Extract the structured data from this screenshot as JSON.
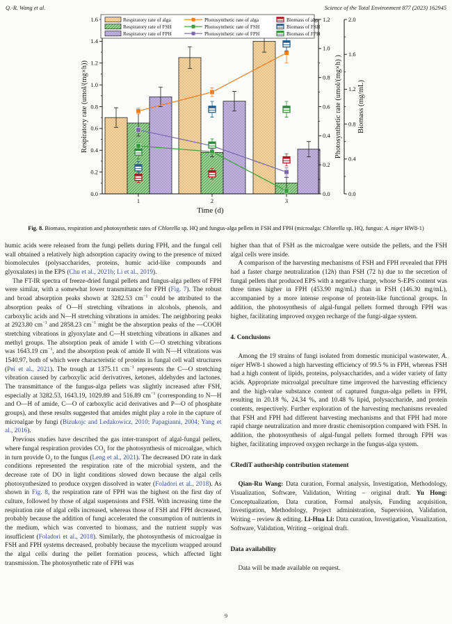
{
  "header": {
    "author": "Q.-R. Wang et al.",
    "journal": "Science of the Total Environment 877 (2023) 162945"
  },
  "figure": {
    "caption_runs": [
      {
        "t": "Fig. 8.",
        "s": "b"
      },
      {
        "t": " Biomass, respiration and photosynthetic rates of "
      },
      {
        "t": "Chlorella",
        "s": "i"
      },
      {
        "t": " sp. HQ and fungus-alga pellets in FSH and FPH (microalga: "
      },
      {
        "t": "Chlorella",
        "s": "i"
      },
      {
        "t": " sp. HQ, fungus: "
      },
      {
        "t": "A. niger",
        "s": "i"
      },
      {
        "t": " HW8-1)"
      }
    ]
  },
  "chart_data": {
    "type": "bar+line+box",
    "x": [
      1,
      2,
      3
    ],
    "xlabel": "Time (d)",
    "axes": {
      "left": {
        "label": "Respiratory rate (umol/(mg×h))",
        "min": 0,
        "max": 1.6,
        "step": 0.2
      },
      "right1": {
        "label": "Photosynthetic rate (umol/(mg×h) )",
        "min": 0,
        "max": 1.2,
        "step": 0.2
      },
      "right2": {
        "label": "Biomass (mg/mL)",
        "min": 0,
        "max": 2.0,
        "step": 0.4
      }
    },
    "bars": [
      {
        "name": "Respiratory rate of alga",
        "values": [
          0.7,
          1.25,
          1.4
        ],
        "err": [
          0.09,
          0.1,
          0.1
        ],
        "fill": "#f0d3a2",
        "pattern": "dots",
        "patternColor": "#d6973f"
      },
      {
        "name": "Respiratory rate of FSH",
        "values": [
          0.65,
          0.38,
          0.1
        ],
        "err": [
          0.12,
          0.04,
          0.05
        ],
        "fill": "#a6d9a0",
        "pattern": "hatch",
        "patternColor": "#3e8f3e"
      },
      {
        "name": "Respiratory rate of FPH",
        "values": [
          0.89,
          0.85,
          0.41
        ],
        "err": [
          0.09,
          0.09,
          0.07
        ],
        "fill": "#c0b2dc",
        "pattern": "dots",
        "patternColor": "#8677b5"
      }
    ],
    "lines": [
      {
        "name": "Photosynthetic rate of alga",
        "values": [
          0.57,
          0.7,
          0.97
        ],
        "err": [
          0.02,
          0.03,
          0.07
        ],
        "color": "#ed7d1f"
      },
      {
        "name": "Photosynthetic rate of FSH",
        "values": [
          0.33,
          0.29,
          0.02
        ],
        "err": [
          0.02,
          0.02,
          0.02
        ],
        "color": "#3ba03b"
      },
      {
        "name": "Photosynthetic rate of FPH",
        "values": [
          0.44,
          0.33,
          0.15
        ],
        "err": [
          0.02,
          0.02,
          0.03
        ],
        "color": "#7a67af"
      }
    ],
    "boxes": [
      {
        "name": "Biomass of alga",
        "values": [
          0.19,
          0.23,
          0.39
        ],
        "err": [
          0.06,
          0.06,
          0.07
        ],
        "color": "#b51423"
      },
      {
        "name": "Biomass of FSH",
        "values": [
          0.3,
          0.97,
          1.72
        ],
        "err": [
          0.07,
          0.09,
          0.08
        ],
        "color": "#2a5d8c"
      },
      {
        "name": "Biomass of FPH",
        "values": [
          0.48,
          0.56,
          0.97
        ],
        "err": [
          0.08,
          0.07,
          0.09
        ],
        "color": "#2f8b3c"
      }
    ]
  },
  "columns": {
    "left": [
      {
        "type": "p",
        "indent": false,
        "runs": [
          {
            "t": "humic acids were released from the fungi pellets during FPH, and the fungal cell wall obtained a relatively high adsorption capacity owing to the presence of mixed biomolecules (polysaccharides, proteins, humic acid-like compounds and glyoxalates) in the EPS ("
          },
          {
            "t": "Chu et al., 2021b; Li et al., 2019",
            "s": "link"
          },
          {
            "t": ")."
          }
        ]
      },
      {
        "type": "p",
        "indent": true,
        "runs": [
          {
            "t": "The FT-IR spectra of freeze-dried fungal pellets and fungus-alga pellets of FPH were similar, with a somewhat lower transmittance for FPH ("
          },
          {
            "t": "Fig. 7",
            "s": "link"
          },
          {
            "t": "). The robust and broad absorption peaks shown at 3282.53 cm"
          },
          {
            "t": "−1",
            "s": "sup"
          },
          {
            "t": " could be attributed to the absorption peaks of O—H stretching vibrations in alcohols, phenols, and carboxylic acids and N—H stretching vibrations in amides. The neighboring peaks at 2923.80 cm"
          },
          {
            "t": "−1",
            "s": "sup"
          },
          {
            "t": " and 2858.23 cm"
          },
          {
            "t": "−1",
            "s": "sup"
          },
          {
            "t": " might be the absorption peaks of the —COOH stretching vibrations in glyoxylate and C—H stretching vibrations in alkanes and methyl groups. The absorption peak of amide I with C—O stretching vibrations was 1643.19 cm"
          },
          {
            "t": "−1",
            "s": "sup"
          },
          {
            "t": ", and the absorption peak of amide II with N—H vibrations was 1540.97, both of which were characteristic of proteins in fungal cell wall structures ("
          },
          {
            "t": "Pei et al., 2021",
            "s": "link"
          },
          {
            "t": "). The trough at 1375.11 cm"
          },
          {
            "t": "−1",
            "s": "sup"
          },
          {
            "t": " represents the C—O stretching vibration caused by carboxylic acid derivatives, ketones, aldehydes and lactones. The transmittance of the fungus-alga pellets was slightly increased after FSH, especially at 3282.53, 1643.19, 1029.89 and 516.89 cm"
          },
          {
            "t": "−1",
            "s": "sup"
          },
          {
            "t": " (corresponding to N—H and O—H of amide, C—O of carboxylic acid derivatives and P—O of phosphate groups), and these results suggested that amides might play a role in the capture of microalgae by fungi ("
          },
          {
            "t": "Bizukojc and Ledakowicz, 2010; Papagianni, 2004; Yang et al., 2016",
            "s": "link"
          },
          {
            "t": ")."
          }
        ]
      },
      {
        "type": "p",
        "indent": true,
        "runs": [
          {
            "t": "Previous studies have described the gas inter-transport of algal-fungal pellets, where fungal respiration provides CO"
          },
          {
            "t": "2",
            "s": "sub"
          },
          {
            "t": " for the photosynthesis of microalgae, which in turn provide O"
          },
          {
            "t": "2",
            "s": "sub"
          },
          {
            "t": " to the fungus ("
          },
          {
            "t": "Leng et al., 2021",
            "s": "link"
          },
          {
            "t": "). The decreased DO rate in dark conditions represented the respiration rate of the microbial system, and the decrease rate of DO in light conditions slowed down because the algal cells photosynthesized to produce oxygen dissolved in water ("
          },
          {
            "t": "Foladori et al., 2018",
            "s": "link"
          },
          {
            "t": "). As shown in "
          },
          {
            "t": "Fig. 8",
            "s": "link"
          },
          {
            "t": ", the respiration rate of FPH was the highest on the first day of culture, followed by those of algal suspensions and FSH. With increasing time the respiration rate of algal cells increased, whereas those of FSH and FPH decreased, probably because the addition of fungi accelerated the consumption of nutrients in the medium, which was converted to biomass, and the nutrient supply was insufficient ("
          },
          {
            "t": "Foladori et al., 2018",
            "s": "link"
          },
          {
            "t": "). Similarly, the photosynthesis of microalgae in FSH and FPH systems decreased, probably because the mycelium wrapped around the algal cells during the pellet formation process, which affected light transmission. The photosynthetic rate of FPH was"
          }
        ]
      }
    ],
    "right": [
      {
        "type": "p",
        "indent": false,
        "runs": [
          {
            "t": "higher than that of FSH as the microalgae were outside the pellets, and the FSH algal cells were inside."
          }
        ]
      },
      {
        "type": "p",
        "indent": true,
        "runs": [
          {
            "t": "A comparison of the harvesting mechanisms of FSH and FPH revealed that FPH had a faster charge neutralization (12"
          },
          {
            "t": "h",
            "s": "i"
          },
          {
            "t": ") than FSH (72 h) due to the secretion of fungal pellets that produced EPS with a negative charge, whose S-EPS content was three times higher in FPH (453.90 mg/mL) than in FSH (146.30 mg/mL), accompanied by a more intense response of protein-like functional groups. In addition, the photosynthesis of algal-fungal pellets formed through FPH was higher, facilitating improved oxygen recharge of the fungi-algae system."
          }
        ]
      },
      {
        "type": "h",
        "text": "4. Conclusions"
      },
      {
        "type": "p",
        "indent": true,
        "runs": [
          {
            "t": "Among the 19 strains of fungi isolated from domestic municipal wastewater, "
          },
          {
            "t": "A. niger",
            "s": "i"
          },
          {
            "t": " HW8-1 showed a high harvesting efficiency of 99.5 % in FPH, whereas FSH had a high content of lipids, proteins, polysaccharides, and a wider variety of fatty acids. Appropriate microalgal preculture time improved the harvesting efficiency and the high-value substance content of captured fungus-alga pellets in FPH, resulting in 20.18 %, 24.34 %, and 10.48 % lipid, polysaccharide, and protein contents, respectively. Further exploration of the harvesting mechanisms revealed that FSH and FPH had different harvesting mechanisms and that FPH had more rapid charge neutralization and more drastic chemisorption compared with FSH. In addition, the photosynthesis of algal-fungal pellets formed through FPH was higher, facilitating improved oxygen recharge in the fungus-alga system."
          }
        ]
      },
      {
        "type": "h",
        "text": "CRediT authorship contribution statement"
      },
      {
        "type": "p",
        "indent": true,
        "runs": [
          {
            "t": "Qian-Ru Wang:",
            "s": "b"
          },
          {
            "t": " Data curation, Formal analysis, Investigation, Methodology, Visualization, Software, Validation, Writing – original draft. "
          },
          {
            "t": "Yu Hong:",
            "s": "b"
          },
          {
            "t": " Conceptualization, Data curation, Formal analysis, Funding acquisition, Investigation, Methodology, Project administration, Supervision, Validation, Writing – review & editing. "
          },
          {
            "t": "Li-Hua Li:",
            "s": "b"
          },
          {
            "t": " Data curation, Investigation, Visualization, Software, Validation, Writing – original draft."
          }
        ]
      },
      {
        "type": "h",
        "text": "Data availability"
      },
      {
        "type": "p",
        "indent": true,
        "runs": [
          {
            "t": "Data will be made available on request."
          }
        ]
      }
    ]
  },
  "footer": {
    "page_number": "9"
  }
}
